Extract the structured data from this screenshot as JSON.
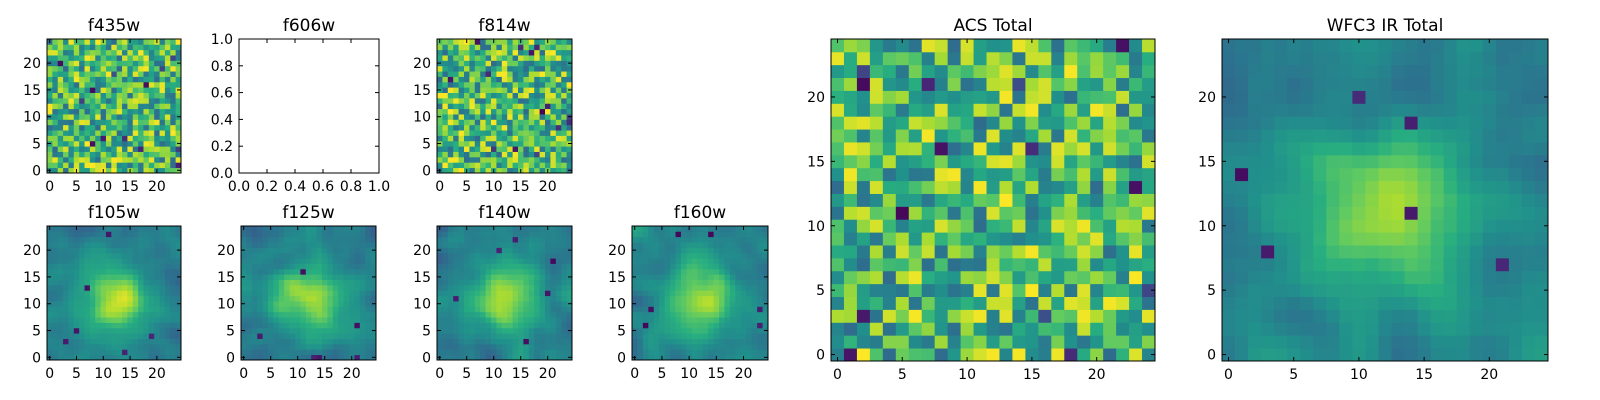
{
  "figure": {
    "background": "#ffffff",
    "colormap": "viridis",
    "colormap_colors": [
      "#440154",
      "#3b528b",
      "#21918c",
      "#5ec962",
      "#fde725"
    ]
  },
  "chart_data": [
    {
      "id": "f435w",
      "type": "heatmap",
      "title": "f435w",
      "xticks": [
        "0",
        "5",
        "10",
        "15",
        "20"
      ],
      "yticks": [
        "0",
        "5",
        "10",
        "15",
        "20"
      ],
      "xlim": [
        -0.5,
        24.5
      ],
      "ylim": [
        -0.5,
        24.5
      ],
      "grid": false,
      "cmap": "viridis",
      "values_description_free": true,
      "smoothness": "noisy",
      "seed": 11
    },
    {
      "id": "f606w",
      "type": "heatmap",
      "title": "f606w",
      "empty": true,
      "xticks": [
        "0.0",
        "0.2",
        "0.4",
        "0.6",
        "0.8",
        "1.0"
      ],
      "yticks": [
        "0.0",
        "0.2",
        "0.4",
        "0.6",
        "0.8",
        "1.0"
      ],
      "xlim": [
        0,
        1
      ],
      "ylim": [
        0,
        1
      ],
      "grid": false
    },
    {
      "id": "f814w",
      "type": "heatmap",
      "title": "f814w",
      "xticks": [
        "0",
        "5",
        "10",
        "15",
        "20"
      ],
      "yticks": [
        "0",
        "5",
        "10",
        "15",
        "20"
      ],
      "xlim": [
        -0.5,
        24.5
      ],
      "ylim": [
        -0.5,
        24.5
      ],
      "grid": false,
      "cmap": "viridis",
      "smoothness": "noisy",
      "seed": 23
    },
    {
      "id": "f105w",
      "type": "heatmap",
      "title": "f105w",
      "xticks": [
        "0",
        "5",
        "10",
        "15",
        "20"
      ],
      "yticks": [
        "0",
        "5",
        "10",
        "15",
        "20"
      ],
      "xlim": [
        -0.5,
        24.5
      ],
      "ylim": [
        -0.5,
        24.5
      ],
      "grid": false,
      "cmap": "viridis",
      "smoothness": "smooth",
      "seed": 37
    },
    {
      "id": "f125w",
      "type": "heatmap",
      "title": "f125w",
      "xticks": [
        "0",
        "5",
        "10",
        "15",
        "20"
      ],
      "yticks": [
        "0",
        "5",
        "10",
        "15",
        "20"
      ],
      "xlim": [
        -0.5,
        24.5
      ],
      "ylim": [
        -0.5,
        24.5
      ],
      "grid": false,
      "cmap": "viridis",
      "smoothness": "smooth",
      "seed": 41
    },
    {
      "id": "f140w",
      "type": "heatmap",
      "title": "f140w",
      "xticks": [
        "0",
        "5",
        "10",
        "15",
        "20"
      ],
      "yticks": [
        "0",
        "5",
        "10",
        "15",
        "20"
      ],
      "xlim": [
        -0.5,
        24.5
      ],
      "ylim": [
        -0.5,
        24.5
      ],
      "grid": false,
      "cmap": "viridis",
      "smoothness": "smooth",
      "seed": 53
    },
    {
      "id": "f160w",
      "type": "heatmap",
      "title": "f160w",
      "xticks": [
        "0",
        "5",
        "10",
        "15",
        "20"
      ],
      "yticks": [
        "0",
        "5",
        "10",
        "15",
        "20"
      ],
      "xlim": [
        -0.5,
        24.5
      ],
      "ylim": [
        -0.5,
        24.5
      ],
      "grid": false,
      "cmap": "viridis",
      "smoothness": "smooth",
      "seed": 67
    },
    {
      "id": "acs-total",
      "type": "heatmap",
      "title": "ACS Total",
      "xticks": [
        "0",
        "5",
        "10",
        "15",
        "20"
      ],
      "yticks": [
        "0",
        "5",
        "10",
        "15",
        "20"
      ],
      "xlim": [
        -0.5,
        24.5
      ],
      "ylim": [
        -0.5,
        24.5
      ],
      "grid": false,
      "cmap": "viridis",
      "smoothness": "noisy",
      "seed": 79
    },
    {
      "id": "wfc3-ir-total",
      "type": "heatmap",
      "title": "WFC3 IR Total",
      "xticks": [
        "0",
        "5",
        "10",
        "15",
        "20"
      ],
      "yticks": [
        "0",
        "5",
        "10",
        "15",
        "20"
      ],
      "xlim": [
        -0.5,
        24.5
      ],
      "ylim": [
        -0.5,
        24.5
      ],
      "grid": false,
      "cmap": "viridis",
      "smoothness": "smooth",
      "seed": 97
    }
  ]
}
